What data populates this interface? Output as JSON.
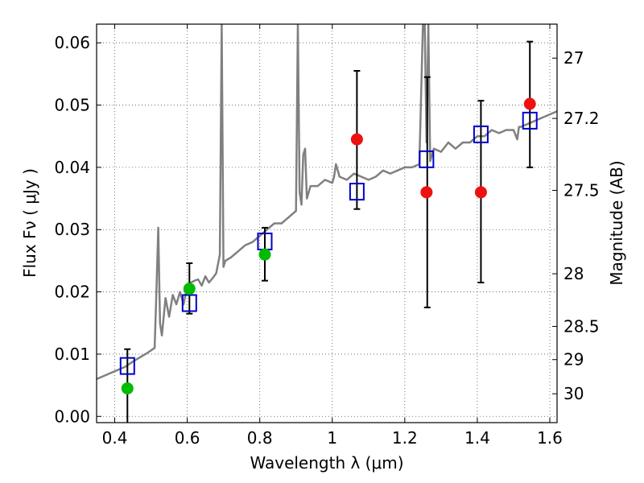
{
  "chart_data": {
    "type": "scatter",
    "title": "",
    "xlabel": "Wavelength  λ (μm)",
    "ylabel_left": "Flux  Fν  ( μJy )",
    "ylabel_right": "Magnitude (AB)",
    "xlim": [
      0.35,
      1.62
    ],
    "ylim": [
      -0.001,
      0.063
    ],
    "grid": true,
    "x_ticks": [
      0.4,
      0.6,
      0.8,
      1,
      1.2,
      1.4,
      1.6
    ],
    "x_tick_labels": [
      "0.4",
      "0.6",
      "0.8",
      "1",
      "1.2",
      "1.4",
      "1.6"
    ],
    "y_ticks": [
      0.0,
      0.01,
      0.02,
      0.03,
      0.04,
      0.05,
      0.06
    ],
    "y_tick_labels": [
      "0.00",
      "0.01",
      "0.02",
      "0.03",
      "0.04",
      "0.05",
      "0.06"
    ],
    "mag_ticks": [
      27,
      27.2,
      27.5,
      28,
      28.5,
      29,
      30
    ],
    "mag_tick_labels": [
      "27",
      "27.2",
      "27.5",
      "28",
      "28.5",
      "29",
      "30"
    ],
    "colors": {
      "spectrum": "#808080",
      "model": "#0000cc",
      "detection": "#00bb00",
      "upper": "#ee1111",
      "errorbar": "#000000",
      "grid": "#555555"
    },
    "series": [
      {
        "marker": "square",
        "color": "#0000cc",
        "x": [
          0.435,
          0.606,
          0.814,
          1.068,
          1.26,
          1.41,
          1.545
        ],
        "y": [
          0.0081,
          0.0182,
          0.0281,
          0.0361,
          0.0413,
          0.0453,
          0.0475
        ]
      },
      {
        "marker": "circle",
        "color": "#00bb00",
        "x": [
          0.435,
          0.606,
          0.814
        ],
        "y": [
          0.0045,
          0.0205,
          0.026
        ]
      },
      {
        "marker": "circle",
        "color": "#ee1111",
        "x": [
          1.068,
          1.26,
          1.41,
          1.545
        ],
        "y": [
          0.0445,
          0.036,
          0.036,
          0.0502
        ]
      }
    ],
    "error_bars": [
      {
        "x": 0.435,
        "low": -0.002,
        "high": 0.0108
      },
      {
        "x": 0.606,
        "low": 0.0165,
        "high": 0.0246
      },
      {
        "x": 0.814,
        "low": 0.0218,
        "high": 0.0303
      },
      {
        "x": 1.068,
        "low": 0.0333,
        "high": 0.0555
      },
      {
        "x": 1.262,
        "low": 0.0175,
        "high": 0.0545
      },
      {
        "x": 1.41,
        "low": 0.0215,
        "high": 0.0507
      },
      {
        "x": 1.545,
        "low": 0.04,
        "high": 0.0602
      }
    ],
    "spectrum": {
      "x": [
        0.35,
        0.37,
        0.39,
        0.41,
        0.43,
        0.45,
        0.47,
        0.49,
        0.51,
        0.515,
        0.52,
        0.525,
        0.53,
        0.54,
        0.55,
        0.56,
        0.57,
        0.58,
        0.59,
        0.6,
        0.61,
        0.62,
        0.63,
        0.64,
        0.65,
        0.66,
        0.67,
        0.68,
        0.69,
        0.695,
        0.7,
        0.705,
        0.72,
        0.74,
        0.76,
        0.78,
        0.8,
        0.82,
        0.84,
        0.86,
        0.88,
        0.9,
        0.905,
        0.91,
        0.915,
        0.92,
        0.925,
        0.93,
        0.935,
        0.94,
        0.96,
        0.98,
        1.0,
        1.005,
        1.01,
        1.02,
        1.04,
        1.06,
        1.08,
        1.1,
        1.12,
        1.14,
        1.16,
        1.18,
        1.2,
        1.22,
        1.24,
        1.25,
        1.255,
        1.26,
        1.265,
        1.27,
        1.28,
        1.3,
        1.32,
        1.34,
        1.36,
        1.38,
        1.4,
        1.42,
        1.44,
        1.46,
        1.48,
        1.5,
        1.51,
        1.515,
        1.52,
        1.54,
        1.56,
        1.58,
        1.6,
        1.62
      ],
      "y": [
        0.006,
        0.0065,
        0.007,
        0.0075,
        0.008,
        0.0088,
        0.0095,
        0.0102,
        0.011,
        0.02,
        0.0303,
        0.015,
        0.013,
        0.019,
        0.016,
        0.0195,
        0.018,
        0.02,
        0.018,
        0.021,
        0.0215,
        0.0218,
        0.022,
        0.021,
        0.0225,
        0.0215,
        0.0222,
        0.023,
        0.026,
        0.063,
        0.024,
        0.025,
        0.0255,
        0.0265,
        0.0275,
        0.028,
        0.029,
        0.03,
        0.031,
        0.031,
        0.032,
        0.033,
        0.063,
        0.036,
        0.034,
        0.042,
        0.043,
        0.035,
        0.036,
        0.037,
        0.037,
        0.038,
        0.0375,
        0.0385,
        0.0405,
        0.0385,
        0.038,
        0.039,
        0.0385,
        0.038,
        0.0385,
        0.0395,
        0.039,
        0.0395,
        0.04,
        0.04,
        0.0405,
        0.063,
        0.063,
        0.044,
        0.063,
        0.041,
        0.043,
        0.0425,
        0.044,
        0.043,
        0.044,
        0.044,
        0.045,
        0.045,
        0.046,
        0.0455,
        0.046,
        0.046,
        0.0445,
        0.0465,
        0.0465,
        0.047,
        0.0475,
        0.048,
        0.0485,
        0.049
      ]
    }
  }
}
